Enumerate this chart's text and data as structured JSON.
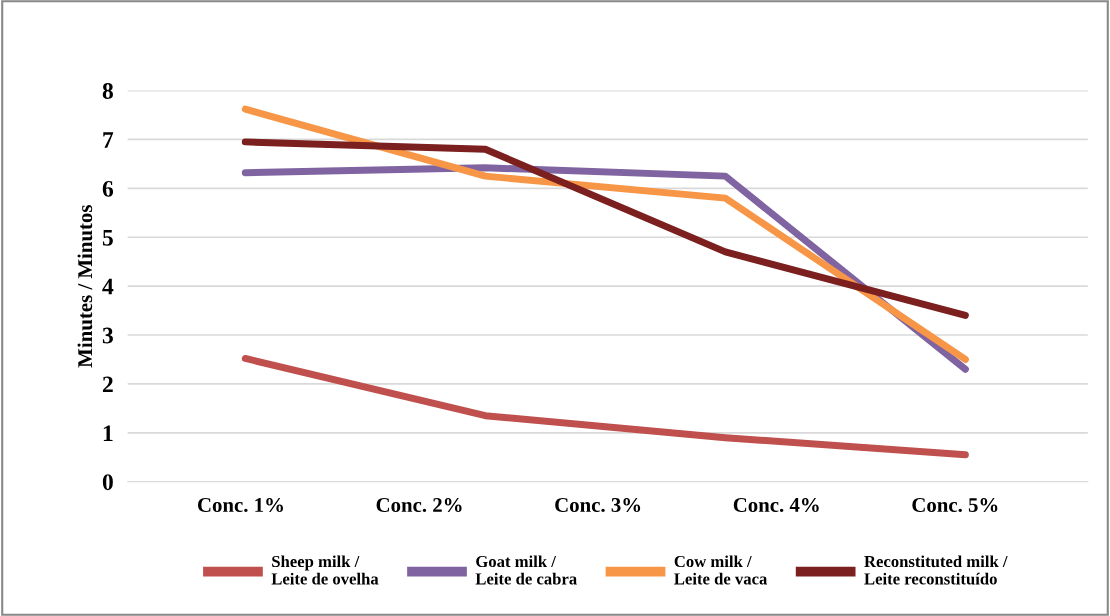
{
  "chart_data": {
    "type": "line",
    "ylabel": "Minutes / Minutos",
    "categories": [
      null,
      null,
      null,
      null
    ],
    "annotations": [
      "Conc. 1%",
      "Conc. 2%",
      "Conc. 3%",
      "Conc. 4%",
      "Conc. 5%"
    ],
    "ylim": [
      0,
      8
    ],
    "yticks": [
      0,
      1,
      2,
      3,
      4,
      5,
      6,
      7,
      8
    ],
    "grid": "y",
    "legend": "bottom",
    "marker": "none",
    "line_style": "solid",
    "series": [
      {
        "name": "Sheep milk /\nLeite de ovelha",
        "color": "#c0504d",
        "values": [
          2.52,
          1.35,
          0.9,
          0.55
        ]
      },
      {
        "name": "Goat milk /\nLeite de cabra",
        "color": "#8064a2",
        "values": [
          6.32,
          6.42,
          6.25,
          2.3
        ]
      },
      {
        "name": "Cow milk /\nLeite de vaca",
        "color": "#f79646",
        "values": [
          7.62,
          6.25,
          5.8,
          2.5
        ]
      },
      {
        "name": "Reconstituted milk /\nLeite reconstituído",
        "color": "#7b1f1f",
        "values": [
          6.95,
          6.8,
          4.7,
          3.4
        ]
      }
    ]
  }
}
